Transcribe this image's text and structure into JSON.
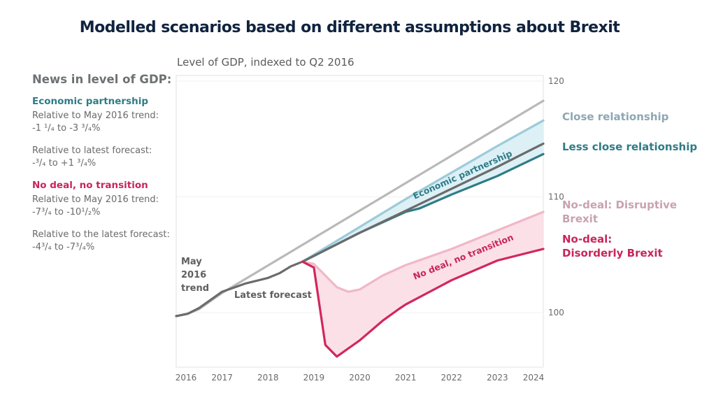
{
  "title": "Modelled scenarios based on different assumptions about Brexit",
  "sidebar": {
    "heading": "News in level of GDP:",
    "groups": [
      {
        "name": "Economic partnership",
        "color": "#2f7c86",
        "lines": [
          [
            "Relative to May 2016 trend:",
            "-1 ¹/₄ to -3 ³/₄%"
          ],
          [
            "Relative to latest forecast:",
            "-³/₄ to +1 ³/₄%"
          ]
        ]
      },
      {
        "name": "No deal, no transition",
        "color": "#c8255a",
        "lines": [
          [
            "Relative to May 2016 trend:",
            "-7³/₄ to -10¹/₂%"
          ],
          [
            "Relative to the latest forecast:",
            "-4³/₄ to -7³/₄%"
          ]
        ]
      }
    ]
  },
  "chart_data": {
    "type": "line",
    "title": "Modelled scenarios based on different assumptions about Brexit",
    "ylabel": "Level of GDP, indexed to Q2 2016",
    "xlabel": "",
    "xlim": [
      2016,
      2024
    ],
    "ylim": [
      95,
      120.5
    ],
    "yticks": [
      100,
      110,
      120
    ],
    "xticks": [
      "2016",
      "2017",
      "2018",
      "2019",
      "2020",
      "2021",
      "2022",
      "2023",
      "2024"
    ],
    "grid": true,
    "series": [
      {
        "name": "May 2016 trend",
        "color": "#b9b9b9",
        "x": [
          2016.0,
          2016.25,
          2016.5,
          2017.0,
          2024.0
        ],
        "y": [
          99.7,
          99.9,
          100.3,
          101.7,
          118.3
        ]
      },
      {
        "name": "Latest forecast",
        "color": "#6b6b6b",
        "x": [
          2016.0,
          2016.25,
          2016.5,
          2017.0,
          2017.5,
          2018.0,
          2018.25,
          2018.5,
          2018.75,
          2019.0,
          2020.0,
          2021.0,
          2022.0,
          2023.0,
          2024.0
        ],
        "y": [
          99.7,
          99.9,
          100.4,
          101.8,
          102.5,
          103.0,
          103.4,
          104.0,
          104.4,
          104.9,
          106.9,
          108.8,
          110.7,
          112.6,
          114.6
        ]
      },
      {
        "name": "Close relationship",
        "color": "#9ccbd8",
        "x": [
          2018.75,
          2019.0,
          2020.0,
          2021.0,
          2022.0,
          2023.0,
          2024.0
        ],
        "y": [
          104.4,
          105.0,
          107.4,
          109.8,
          112.1,
          114.4,
          116.6
        ]
      },
      {
        "name": "Less close relationship",
        "color": "#2f7c86",
        "x": [
          2018.75,
          2019.0,
          2020.0,
          2021.0,
          2021.3,
          2022.0,
          2023.0,
          2024.0
        ],
        "y": [
          104.4,
          104.9,
          106.9,
          108.7,
          109.0,
          110.2,
          111.8,
          113.7
        ]
      },
      {
        "name": "No-deal: Disruptive Brexit",
        "color": "#f0b7c8",
        "x": [
          2018.75,
          2019.0,
          2019.5,
          2019.75,
          2020.0,
          2020.5,
          2021.0,
          2022.0,
          2023.0,
          2024.0
        ],
        "y": [
          104.4,
          104.2,
          102.2,
          101.8,
          102.0,
          103.2,
          104.1,
          105.5,
          107.1,
          108.7
        ]
      },
      {
        "name": "No-deal: Disorderly Brexit",
        "color": "#d1275c",
        "x": [
          2018.75,
          2019.0,
          2019.25,
          2019.5,
          2020.0,
          2020.5,
          2020.85,
          2021.0,
          2022.0,
          2023.0,
          2024.0
        ],
        "y": [
          104.4,
          103.9,
          97.2,
          96.2,
          97.6,
          99.3,
          100.3,
          100.7,
          102.8,
          104.5,
          105.5
        ]
      }
    ],
    "bands": [
      {
        "name": "Economic partnership",
        "upper": "Close relationship",
        "lower": "Less close relationship",
        "fill": "#ddf0f6"
      },
      {
        "name": "No deal, no transition",
        "upper": "No-deal: Disruptive Brexit",
        "lower": "No-deal: Disorderly Brexit",
        "fill": "#fbe0e8"
      }
    ],
    "annotations": [
      {
        "text": "May 2016 trend",
        "lines": [
          "May",
          "2016",
          "trend"
        ],
        "color": "#5f5f5f"
      },
      {
        "text": "Latest forecast",
        "color": "#5f5f5f"
      },
      {
        "text": "Economic partnership",
        "color": "#2f7c86"
      },
      {
        "text": "No deal, no transition",
        "color": "#c8255a"
      }
    ],
    "legend": [
      {
        "text": "Close relationship",
        "lines": [
          "Close relationship"
        ],
        "color": "#8ea7b3",
        "position": "right"
      },
      {
        "text": "Less close relationship",
        "lines": [
          "Less close relationship"
        ],
        "color": "#2f7c86",
        "position": "right"
      },
      {
        "text": "No-deal: Disruptive Brexit",
        "lines": [
          "No-deal: Disruptive",
          "Brexit"
        ],
        "color": "#c9a2b0",
        "position": "right"
      },
      {
        "text": "No-deal: Disorderly Brexit",
        "lines": [
          "No-deal:",
          "Disorderly Brexit"
        ],
        "color": "#c8255a",
        "position": "right"
      }
    ]
  }
}
